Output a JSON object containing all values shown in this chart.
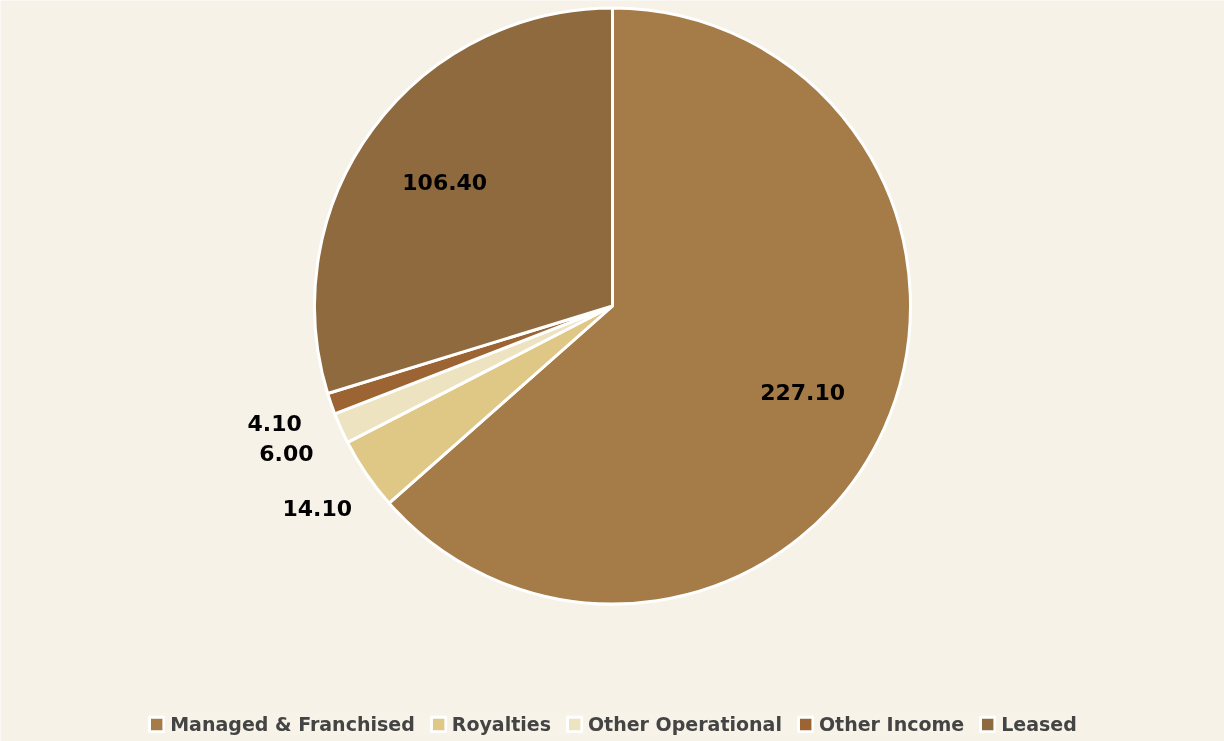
{
  "chart_data": {
    "type": "pie",
    "categories": [
      "Managed & Franchised",
      "Royalties",
      "Other Operational",
      "Other Income",
      "Leased"
    ],
    "values": [
      227.1,
      14.1,
      6.0,
      4.1,
      106.4
    ],
    "colors": [
      "#a57c47",
      "#dfc785",
      "#ede3c1",
      "#9b6432",
      "#8f6a3e"
    ],
    "value_labels": [
      "227.10",
      "14.10",
      "6.00",
      "4.10",
      "106.40"
    ],
    "legend": "bottom"
  }
}
